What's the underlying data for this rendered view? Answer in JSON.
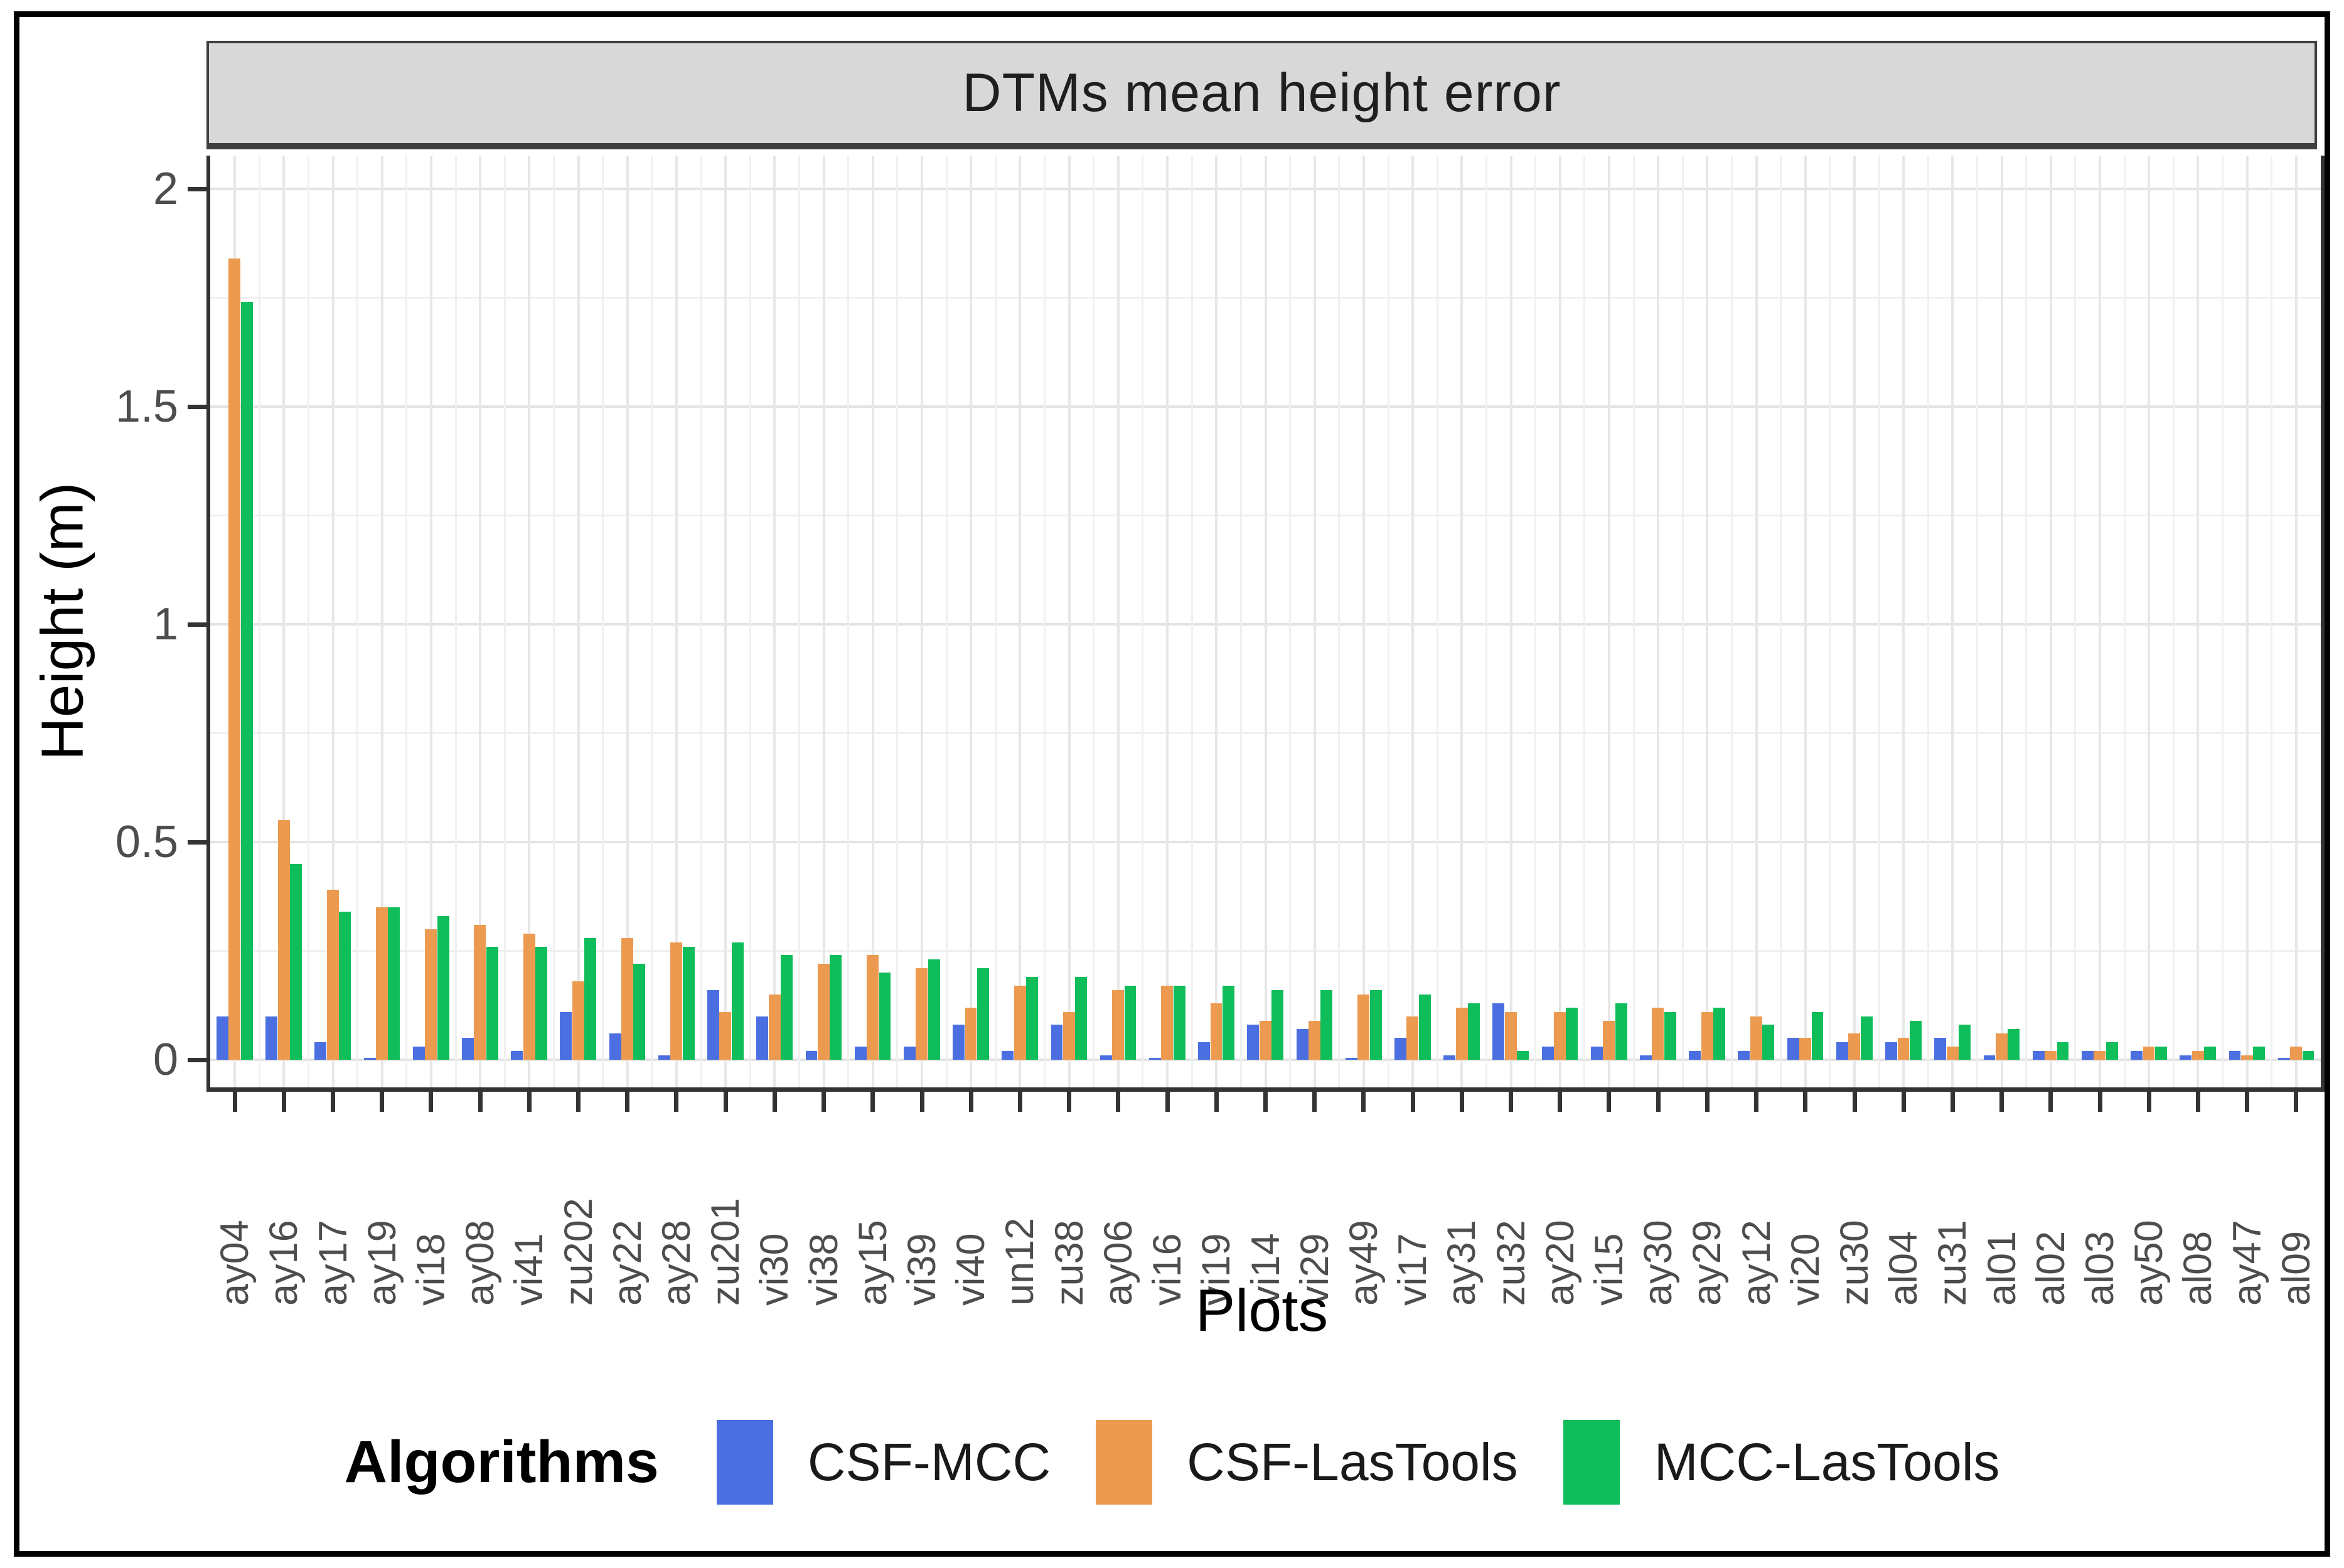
{
  "chart_data": {
    "type": "bar",
    "title": "DTMs mean height error",
    "xlabel": "Plots",
    "ylabel": "Height (m)",
    "ylim": [
      0,
      2.08
    ],
    "yticks": [
      0,
      0.5,
      1,
      1.5,
      2
    ],
    "ytick_labels": [
      "0",
      "0.5",
      "1",
      "1.5",
      "2"
    ],
    "grid": true,
    "legend_title": "Algorithms",
    "legend_position": "bottom",
    "categories": [
      "ay04",
      "ay16",
      "ay17",
      "ay19",
      "vi18",
      "ay08",
      "vi41",
      "zu202",
      "ay22",
      "ay28",
      "zu201",
      "vi30",
      "vi38",
      "ay15",
      "vi39",
      "vi40",
      "un12",
      "zu38",
      "ay06",
      "vi16",
      "vi19",
      "vi14",
      "vi29",
      "ay49",
      "vi17",
      "ay31",
      "zu32",
      "ay20",
      "vi15",
      "ay30",
      "ay29",
      "ay12",
      "vi20",
      "zu30",
      "al04",
      "zu31",
      "al01",
      "al02",
      "al03",
      "ay50",
      "al08",
      "ay47",
      "al09"
    ],
    "series": [
      {
        "name": "CSF-MCC",
        "color": "#4b6fe1",
        "values": [
          0.1,
          0.1,
          0.04,
          0.005,
          0.03,
          0.05,
          0.02,
          0.11,
          0.06,
          0.01,
          0.16,
          0.1,
          0.02,
          0.03,
          0.03,
          0.08,
          0.02,
          0.08,
          0.01,
          0.005,
          0.04,
          0.08,
          0.07,
          0.005,
          0.05,
          0.01,
          0.13,
          0.03,
          0.03,
          0.01,
          0.02,
          0.02,
          0.05,
          0.04,
          0.04,
          0.05,
          0.01,
          0.02,
          0.02,
          0.02,
          0.01,
          0.02,
          0.005
        ]
      },
      {
        "name": "CSF-LasTools",
        "color": "#ec9a4f",
        "values": [
          1.84,
          0.55,
          0.39,
          0.35,
          0.3,
          0.31,
          0.29,
          0.18,
          0.28,
          0.27,
          0.11,
          0.15,
          0.22,
          0.24,
          0.21,
          0.12,
          0.17,
          0.11,
          0.16,
          0.17,
          0.13,
          0.09,
          0.09,
          0.15,
          0.1,
          0.12,
          0.11,
          0.11,
          0.09,
          0.12,
          0.11,
          0.1,
          0.05,
          0.06,
          0.05,
          0.03,
          0.06,
          0.02,
          0.02,
          0.03,
          0.02,
          0.01,
          0.03
        ]
      },
      {
        "name": "MCC-LasTools",
        "color": "#0fbd5a",
        "values": [
          1.74,
          0.45,
          0.34,
          0.35,
          0.33,
          0.26,
          0.26,
          0.28,
          0.22,
          0.26,
          0.27,
          0.24,
          0.24,
          0.2,
          0.23,
          0.21,
          0.19,
          0.19,
          0.17,
          0.17,
          0.17,
          0.16,
          0.16,
          0.16,
          0.15,
          0.13,
          0.02,
          0.12,
          0.13,
          0.11,
          0.12,
          0.08,
          0.11,
          0.1,
          0.09,
          0.08,
          0.07,
          0.04,
          0.04,
          0.03,
          0.03,
          0.03,
          0.02
        ]
      }
    ],
    "panel_colors": {
      "strip_fill": "#d8d8d8",
      "axis_color": "#333333",
      "tick_label_color": "#4d4d4d"
    }
  }
}
